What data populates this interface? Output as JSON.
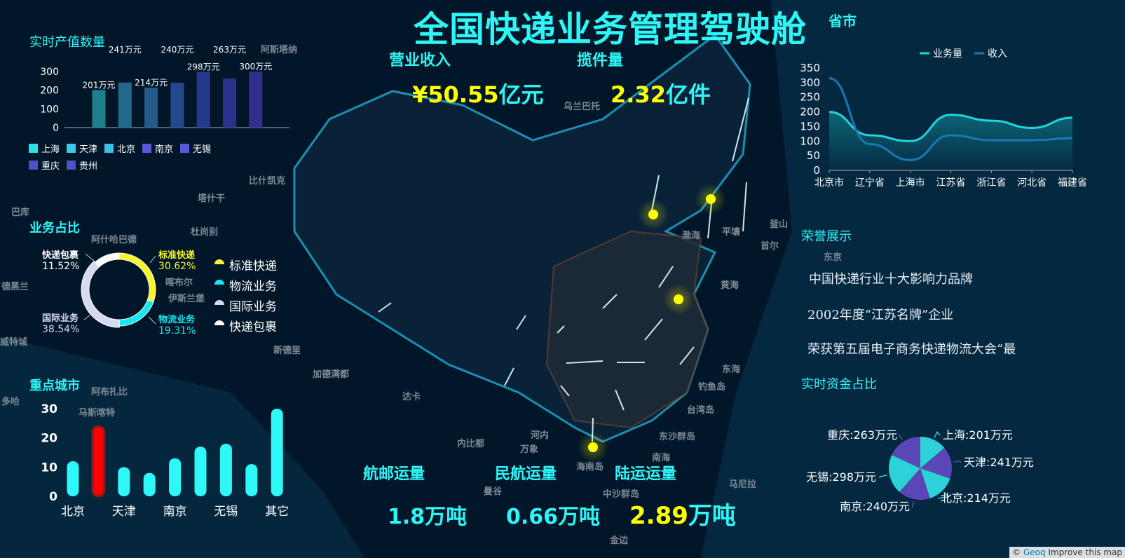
{
  "header": {
    "title": "全国快递业务管理驾驶舱",
    "hidden_title_fragment": "省市"
  },
  "kpis_top": [
    {
      "label": "营业收入",
      "prefix": "¥",
      "number": "50.55",
      "unit": "亿元"
    },
    {
      "label": "揽件量",
      "prefix": "",
      "number": "2.32",
      "unit": "亿件"
    }
  ],
  "kpis_bottom": [
    {
      "label": "航邮运量",
      "number": "1.8",
      "unit": "万吨",
      "highlight": false
    },
    {
      "label": "民航运量",
      "number": "0.66",
      "unit": "万吨",
      "highlight": false
    },
    {
      "label": "陆运运量",
      "number": "2.89",
      "unit": "万吨",
      "highlight": true
    }
  ],
  "colors": {
    "accent": "#2ef6f6",
    "highlight": "#ffff00",
    "background": "#021629",
    "alert": "#ff0000"
  },
  "map": {
    "labels": [
      "阿斯塔纳",
      "比什凯克",
      "塔什干",
      "巴库",
      "杜尚别",
      "阿什哈巴德",
      "德黑兰",
      "喀布尔",
      "伊斯兰堡",
      "新德里",
      "加德满都",
      "达卡",
      "马斯喀特",
      "多哈",
      "阿布扎比",
      "威特城",
      "乌兰巴托",
      "平壤",
      "首尔",
      "东京",
      "渤海",
      "黄海",
      "东海",
      "南海",
      "台湾岛",
      "钓鱼岛",
      "东沙群岛",
      "中沙群岛",
      "海南岛",
      "河内",
      "万象",
      "曼谷",
      "内比都",
      "马尼拉",
      "金边",
      "釜山"
    ],
    "hotspots": [
      "北京",
      "沈阳",
      "上海",
      "海口"
    ]
  },
  "production": {
    "title": "实时产值数量",
    "chart_data": {
      "type": "bar",
      "categories": [
        "上海",
        "天津",
        "北京",
        "南京",
        "无锡",
        "重庆",
        "贵州"
      ],
      "values": [
        201,
        241,
        214,
        240,
        298,
        263,
        300
      ],
      "labels": [
        "201万元",
        "241万元",
        "214万元",
        "240万元",
        "298万元",
        "263万元",
        "300万元"
      ],
      "ylim": [
        0,
        300
      ],
      "yticks": [
        "0",
        "100",
        "200",
        "300"
      ],
      "colors": [
        "#1f7f8c",
        "#22698c",
        "#245a8c",
        "#24488c",
        "#253a8c",
        "#28318c",
        "#2f2f8c"
      ],
      "legend_colors": [
        "#2be0e8",
        "#3cc8e8",
        "#3cc0e8",
        "#5a5ad8",
        "#5a5ad8",
        "#5050c8",
        "#5050c8"
      ],
      "legend": "bottom"
    }
  },
  "business_share": {
    "title": "业务占比",
    "chart_data": {
      "type": "pie",
      "slices": [
        {
          "name": "标准快递",
          "value": 30.62,
          "label": "30.62%",
          "color": "#f5f52a"
        },
        {
          "name": "物流业务",
          "value": 19.31,
          "label": "19.31%",
          "color": "#14e8f0"
        },
        {
          "name": "国际业务",
          "value": 38.54,
          "label": "38.54%",
          "color": "#d6d8f4"
        },
        {
          "name": "快递包裹",
          "value": 11.52,
          "label": "11.52%",
          "color": "#ffffff"
        }
      ],
      "legend": "right"
    }
  },
  "key_cities": {
    "title": "重点城市",
    "chart_data": {
      "type": "bar",
      "categories": [
        "北京",
        "",
        "天津",
        "",
        "南京",
        "",
        "无锡",
        "",
        "其它"
      ],
      "values": [
        12,
        24,
        10,
        8,
        13,
        17,
        18,
        11,
        30
      ],
      "highlight_index": 1,
      "ylim": [
        0,
        30
      ],
      "yticks": [
        "0",
        "10",
        "20",
        "30"
      ]
    }
  },
  "province_chart": {
    "chart_data": {
      "type": "line",
      "categories": [
        "北京市",
        "辽宁省",
        "上海市",
        "江苏省",
        "浙江省",
        "河北省",
        "福建省"
      ],
      "series": [
        {
          "name": "业务量",
          "values": [
            200,
            120,
            100,
            190,
            170,
            145,
            180
          ],
          "color": "#1ed6dc"
        },
        {
          "name": "收入",
          "values": [
            315,
            90,
            35,
            120,
            103,
            103,
            110
          ],
          "color": "#1a78b4"
        }
      ],
      "ylim": [
        0,
        350
      ],
      "yticks": [
        "0",
        "50",
        "100",
        "150",
        "200",
        "250",
        "300",
        "350"
      ],
      "legend": "top"
    }
  },
  "honors": {
    "title": "荣誉展示",
    "items": [
      "中国快递行业十大影响力品牌",
      "2002年度“江苏名牌”企业",
      "荣获第五届电子商务快递物流大会“最"
    ]
  },
  "funds": {
    "title": "实时资金占比",
    "chart_data": {
      "type": "pie",
      "slices": [
        {
          "name": "上海",
          "value": 201,
          "label": "上海:201万元"
        },
        {
          "name": "天津",
          "value": 241,
          "label": "天津:241万元"
        },
        {
          "name": "北京",
          "value": 214,
          "label": "北京:214万元"
        },
        {
          "name": "南京",
          "value": 240,
          "label": "南京:240万元"
        },
        {
          "name": "无锡",
          "value": 298,
          "label": "无锡:298万元"
        },
        {
          "name": "重庆",
          "value": 263,
          "label": "重庆:263万元"
        }
      ],
      "colors": [
        "#2cd2d8",
        "#5a46b4"
      ]
    }
  },
  "attribution": {
    "copyright": "©",
    "provider": "Geoq",
    "link": "Improve this map"
  }
}
